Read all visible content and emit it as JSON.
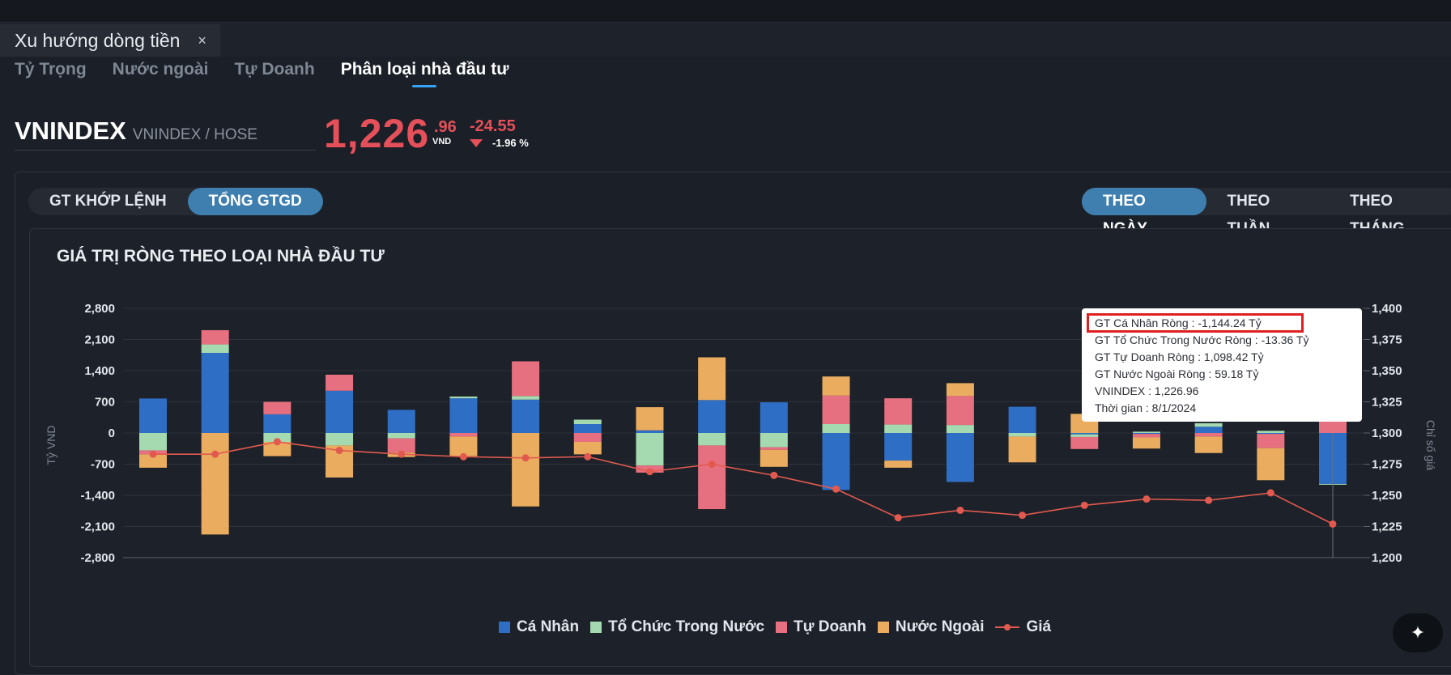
{
  "window_tab": {
    "title": "Xu hướng dòng tiền",
    "close": "×"
  },
  "subtabs": [
    "Tỷ Trọng",
    "Nước ngoài",
    "Tự Doanh",
    "Phân loại nhà đầu tư"
  ],
  "subtabs_active": "Phân loại nhà đầu tư",
  "ticker": {
    "symbol": "VNINDEX",
    "exchange": "VNINDEX / HOSE",
    "price_main": "1,226",
    "price_decimal": ".96",
    "unit": "VND",
    "change": "-24.55",
    "change_pct": "-1.96 %"
  },
  "value_toggle": {
    "options": [
      "GT KHỚP LỆNH",
      "TỔNG GTGD"
    ],
    "selected": "TỔNG GTGD"
  },
  "period_toggle": {
    "options": [
      "THEO NGÀY",
      "THEO TUẦN",
      "THEO THÁNG"
    ],
    "selected": "THEO NGÀY"
  },
  "colors": {
    "ca_nhan": "#2e6ec4",
    "to_chuc": "#a5d9b0",
    "tu_doanh": "#e6707f",
    "nuoc_ngoai": "#eaac5e",
    "gia": "#e25a4f",
    "down": "#e5505a",
    "accent": "#3e7fb0"
  },
  "chart_data": {
    "type": "bar",
    "title": "GIÁ TRỊ RÒNG THEO LOẠI NHÀ ĐẦU TƯ",
    "ylabel": "Tỷ VND",
    "y2label": "Chỉ số giá",
    "ylim": [
      -2800,
      2800
    ],
    "y2lim": [
      1200,
      1400
    ],
    "y_ticks": [
      2800,
      2100,
      1400,
      700,
      0,
      -700,
      -1400,
      -2100,
      -2800
    ],
    "y_tick_labels": [
      "2,800",
      "2,100",
      "1,400",
      "700",
      "0",
      "-700",
      "-1,400",
      "-2,100",
      "-2,800"
    ],
    "y2_ticks": [
      1400,
      1375,
      1350,
      1325,
      1300,
      1275,
      1250,
      1225,
      1200
    ],
    "y2_tick_labels": [
      "1,400",
      "1,375",
      "1,350",
      "1,325",
      "1,300",
      "1,275",
      "1,250",
      "1,225",
      "1,200"
    ],
    "stacked": true,
    "grid": true,
    "legend_position": "bottom",
    "series": [
      {
        "name": "Cá Nhân",
        "type": "bar",
        "values": [
          775,
          1800,
          420,
          950,
          520,
          780,
          750,
          200,
          60,
          740,
          690,
          -1280,
          -620,
          -1100,
          590,
          -30,
          -20,
          140,
          -20,
          -1144.24
        ]
      },
      {
        "name": "Tổ Chức Trong Nước",
        "type": "bar",
        "values": [
          -390,
          190,
          -200,
          -280,
          -120,
          40,
          80,
          100,
          -730,
          -280,
          -320,
          200,
          190,
          180,
          -80,
          -60,
          30,
          80,
          50,
          -13.36
        ]
      },
      {
        "name": "Tự Doanh",
        "type": "bar",
        "values": [
          -90,
          320,
          280,
          360,
          -320,
          -80,
          780,
          -200,
          -160,
          -1430,
          -60,
          640,
          590,
          650,
          0,
          -270,
          -80,
          -80,
          -320,
          1098.42
        ]
      },
      {
        "name": "Nước Ngoài",
        "type": "bar",
        "values": [
          -300,
          -2280,
          -320,
          -720,
          -100,
          -440,
          -1650,
          -280,
          520,
          960,
          -380,
          430,
          -160,
          290,
          -580,
          430,
          -250,
          -370,
          -720,
          59.18
        ]
      },
      {
        "name": "Giá",
        "type": "line",
        "axis": "right",
        "values": [
          1283,
          1283,
          1293,
          1286,
          1283,
          1281,
          1280,
          1281,
          1269,
          1275,
          1266,
          1255,
          1232,
          1238,
          1234,
          1242,
          1247,
          1246,
          1252,
          1226.96
        ]
      }
    ]
  },
  "tooltip": {
    "line1": "GT Cá Nhân Ròng  : -1,144.24 Tỷ",
    "line2": "GT Tổ Chức Trong Nước Ròng : -13.36 Tỷ",
    "line3": "GT Tự Doanh Ròng : 1,098.42 Tỷ",
    "line4": "GT Nước Ngoài Ròng : 59.18 Tỷ",
    "line5": "VNINDEX : 1,226.96",
    "line6": "Thời gian : 8/1/2024"
  },
  "legend": [
    "Cá Nhân",
    "Tổ Chức Trong Nước",
    "Tự Doanh",
    "Nước Ngoài",
    "Giá"
  ],
  "fab_icon": "magic-wand-icon"
}
